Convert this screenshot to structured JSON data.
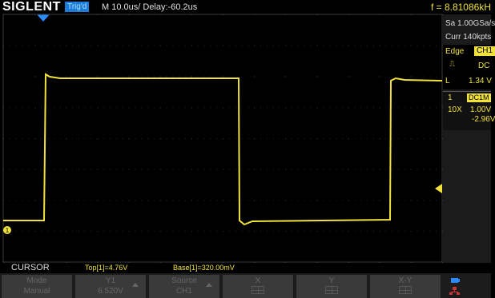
{
  "header": {
    "brand": "SIGLENT",
    "trigger_status": "Trig'd",
    "timebase": "M 10.0us/",
    "delay": "Delay:-60.2us",
    "frequency": "f = 8.81086kH"
  },
  "side_panel": {
    "sample_rate": "Sa 1.00GSa/s",
    "memory_depth": "Curr 140kpts",
    "trigger_type": "Edge",
    "trigger_source": "CH1",
    "trigger_slope_icon": "rising-edge-icon",
    "trigger_coupling": "DC",
    "level_label": "L",
    "trigger_level": "1.34 V",
    "channel_number": "1",
    "channel_coupling": "DC1M",
    "probe_attenuation": "10X",
    "volts_per_div": "1.00V",
    "offset": "-2.96V"
  },
  "cursor_bar": {
    "title": "CURSOR",
    "top_measure": "Top[1]=4.76V",
    "base_measure": "Base[1]=320.00mV"
  },
  "menu": {
    "mode": {
      "label": "Mode",
      "value": "Manual"
    },
    "y1": {
      "label": "Y1",
      "value": "6.520V"
    },
    "source": {
      "label": "Source",
      "value": "CH1"
    },
    "x": {
      "label": "X"
    },
    "y": {
      "label": "Y"
    },
    "xy": {
      "label": "X-Y"
    }
  },
  "colors": {
    "trace": "#f0e23a",
    "trig_badge": "#1e7bd8",
    "menu_bg": "#3a3a3a"
  },
  "waveform": {
    "channel_marker": "1",
    "high_level": "4.76V",
    "low_level": "320.00mV"
  }
}
